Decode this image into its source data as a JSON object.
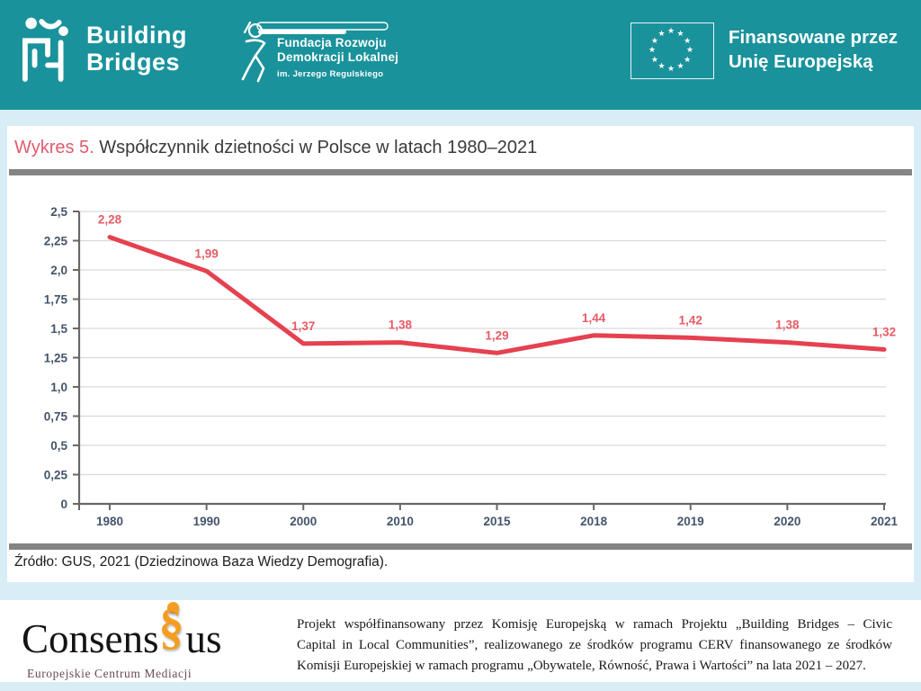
{
  "header": {
    "building_bridges": {
      "line1": "Building",
      "line2": "Bridges"
    },
    "frdl": {
      "line1": "Fundacja Rozwoju",
      "line2": "Demokracji Lokalnej",
      "subtitle": "im. Jerzego Regulskiego"
    },
    "eu": {
      "line1": "Finansowane przez",
      "line2": "Unię Europejską"
    }
  },
  "chart_section": {
    "title_prefix": "Wykres 5.",
    "title_rest": " Współczynnik dzietności w Polsce w latach 1980–2021",
    "source": "Źródło: GUS, 2021 (Dziedzinowa Baza Wiedzy Demografia)."
  },
  "chart_data": {
    "type": "line",
    "title": "Współczynnik dzietności w Polsce w latach 1980–2021",
    "categories": [
      "1980",
      "1990",
      "2000",
      "2010",
      "2015",
      "2018",
      "2019",
      "2020",
      "2021"
    ],
    "values": [
      2.28,
      1.99,
      1.37,
      1.38,
      1.29,
      1.44,
      1.42,
      1.38,
      1.32
    ],
    "point_labels": [
      "2,28",
      "1,99",
      "1,37",
      "1,38",
      "1,29",
      "1,44",
      "1,42",
      "1,38",
      "1,32"
    ],
    "y_tick_labels": [
      "0",
      "0,25",
      "0,5",
      "0,75",
      "1,0",
      "1,25",
      "1,5",
      "1,75",
      "2,0",
      "2,25",
      "2,5"
    ],
    "ylim": [
      0,
      2.5
    ],
    "y_step": 0.25,
    "grid": true,
    "legend": "none",
    "line_color": "#e54150",
    "label_color": "#e85a64",
    "axis_text_color": "#44546a",
    "axis_line_color": "#686868",
    "grid_color": "#d9d9d9"
  },
  "footer": {
    "consensus": {
      "part1": "Consens",
      "symbol": "§",
      "part2": "us",
      "subtitle": "Europejskie Centrum Mediacji"
    },
    "lines": [
      "Projekt współfinansowany przez Komisję Europejską w ramach Projektu „Building Bridges – Civic",
      "Capital in Local Communities”, realizowanego ze środków programu CERV finansowanego ze środków",
      "Komisji Europejskiej w ramach programu „Obywatele, Równość, Prawa i Wartości” na lata 2021 – 2027."
    ]
  },
  "colors": {
    "header_teal": "#1a929b",
    "page_blue": "#d9edf7",
    "divider_gray": "#848484"
  }
}
